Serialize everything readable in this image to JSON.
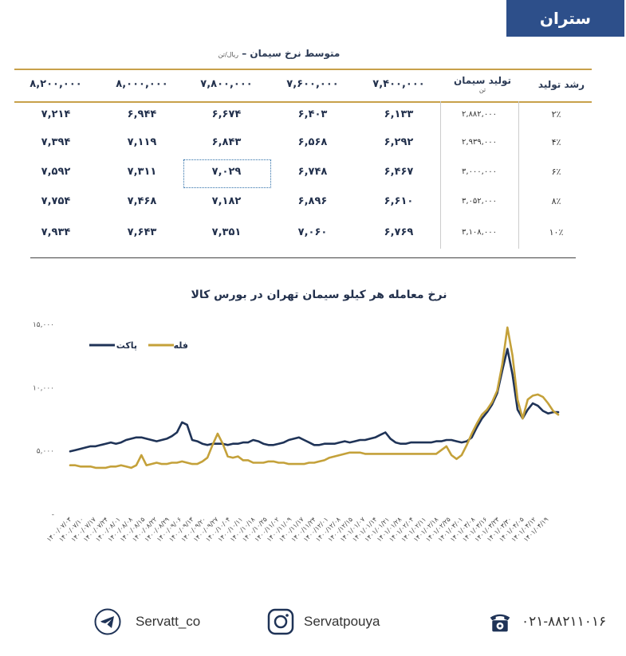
{
  "badge": "ستران",
  "table": {
    "title": "متوسط نرخ سیمان –",
    "title_unit": "ریال/تن",
    "header_growth": "رشد تولید",
    "header_production": "تولید سیمان",
    "header_production_unit": "تن",
    "price_columns": [
      "۸,۲۰۰,۰۰۰",
      "۸,۰۰۰,۰۰۰",
      "۷,۸۰۰,۰۰۰",
      "۷,۶۰۰,۰۰۰",
      "۷,۴۰۰,۰۰۰"
    ],
    "rows": [
      {
        "growth": "۲٪",
        "production": "۲,۸۸۲,۰۰۰",
        "values": [
          "۷,۲۱۴",
          "۶,۹۴۴",
          "۶,۶۷۴",
          "۶,۴۰۳",
          "۶,۱۳۳"
        ]
      },
      {
        "growth": "۴٪",
        "production": "۲,۹۳۹,۰۰۰",
        "values": [
          "۷,۳۹۴",
          "۷,۱۱۹",
          "۶,۸۴۳",
          "۶,۵۶۸",
          "۶,۲۹۲"
        ]
      },
      {
        "growth": "۶٪",
        "production": "۳,۰۰۰,۰۰۰",
        "values": [
          "۷,۵۹۲",
          "۷,۳۱۱",
          "۷,۰۲۹",
          "۶,۷۴۸",
          "۶,۴۶۷"
        ]
      },
      {
        "growth": "۸٪",
        "production": "۳,۰۵۲,۰۰۰",
        "values": [
          "۷,۷۵۴",
          "۷,۴۶۸",
          "۷,۱۸۲",
          "۶,۸۹۶",
          "۶,۶۱۰"
        ]
      },
      {
        "growth": "۱۰٪",
        "production": "۳,۱۰۸,۰۰۰",
        "values": [
          "۷,۹۳۴",
          "۷,۶۴۳",
          "۷,۳۵۱",
          "۷,۰۶۰",
          "۶,۷۶۹"
        ]
      }
    ],
    "highlight": {
      "row": 2,
      "col": 2
    }
  },
  "chart_data": {
    "type": "line",
    "title": "نرخ معامله هر کیلو سیمان تهران در بورس کالا",
    "ylim": [
      0,
      15000
    ],
    "y_ticks": [
      0,
      5000,
      10000,
      15000
    ],
    "y_tick_labels": [
      "-",
      "۵,۰۰۰",
      "۱۰,۰۰۰",
      "۱۵,۰۰۰"
    ],
    "legend_position": "top-left",
    "x_labels": [
      "۱۴۰۰/۰۷/۰۳",
      "۱۴۰۰/۰۷/۱۰",
      "۱۴۰۰/۰۷/۱۷",
      "۱۴۰۰/۰۷/۲۴",
      "۱۴۰۰/۰۸/۰۱",
      "۱۴۰۰/۰۸/۰۸",
      "۱۴۰۰/۰۸/۱۵",
      "۱۴۰۰/۰۸/۲۲",
      "۱۴۰۰/۰۸/۲۹",
      "۱۴۰۰/۰۹/۰۶",
      "۱۴۰۰/۰۹/۱۳",
      "۱۴۰۰/۰۹/۲۰",
      "۱۴۰۰/۰۹/۲۷",
      "۱۴۰۰/۱۰/۰۴",
      "۱۴۰۰/۱۰/۱۱",
      "۱۴۰۰/۱۰/۱۸",
      "۱۴۰۰/۱۰/۲۵",
      "۱۴۰۰/۱۱/۰۲",
      "۱۴۰۰/۱۱/۰۹",
      "۱۴۰۰/۱۱/۱۷",
      "۱۴۰۰/۱۱/۲۴",
      "۱۴۰۰/۱۲/۰۱",
      "۱۴۰۰/۱۲/۰۸",
      "۱۴۰۰/۱۲/۱۵",
      "۱۴۰۱/۰۱/۰۷",
      "۱۴۰۱/۰۱/۱۴",
      "۱۴۰۱/۰۱/۲۱",
      "۱۴۰۱/۰۱/۲۸",
      "۱۴۰۱/۰۲/۰۴",
      "۱۴۰۱/۰۲/۱۱",
      "۱۴۰۱/۰۲/۱۸",
      "۱۴۰۱/۰۲/۲۵",
      "۱۴۰۱/۰۳/۰۱",
      "۱۴۰۱/۰۳/۰۸",
      "۱۴۰۱/۰۳/۱۶",
      "۱۴۰۱/۰۳/۲۳",
      "۱۴۰۱/۰۳/۳۰",
      "۱۴۰۱/۰۴/۰۵",
      "۱۴۰۱/۰۴/۱۲",
      "۱۴۰۱/۰۴/۱۹"
    ],
    "series": [
      {
        "name": "پاکت",
        "color": "#1f3357",
        "values": [
          4900,
          5000,
          5100,
          5200,
          5300,
          5300,
          5400,
          5500,
          5600,
          5500,
          5600,
          5800,
          5900,
          6000,
          6000,
          5900,
          5800,
          5700,
          5800,
          5900,
          6100,
          6400,
          7200,
          7000,
          5800,
          5700,
          5500,
          5400,
          5500,
          5500,
          5500,
          5400,
          5500,
          5500,
          5600,
          5600,
          5800,
          5700,
          5500,
          5400,
          5400,
          5500,
          5600,
          5800,
          5900,
          6000,
          5800,
          5600,
          5400,
          5400,
          5500,
          5500,
          5500,
          5600,
          5700,
          5600,
          5700,
          5800,
          5800,
          5900,
          6000,
          6200,
          6400,
          5900,
          5600,
          5500,
          5500,
          5600,
          5600,
          5600,
          5600,
          5600,
          5700,
          5700,
          5800,
          5800,
          5700,
          5600,
          5700,
          6000,
          6800,
          7500,
          8000,
          8600,
          9500,
          11300,
          13000,
          11000,
          8200,
          7500,
          8200,
          8700,
          8500,
          8100,
          7900,
          8000,
          8000
        ]
      },
      {
        "name": "فله",
        "color": "#c4a13a",
        "values": [
          3800,
          3800,
          3700,
          3700,
          3700,
          3600,
          3600,
          3600,
          3700,
          3700,
          3800,
          3700,
          3600,
          3800,
          4600,
          3800,
          3900,
          4000,
          3900,
          3900,
          4000,
          4000,
          4100,
          4000,
          3900,
          3900,
          4100,
          4400,
          5400,
          6300,
          5500,
          4500,
          4400,
          4500,
          4200,
          4200,
          4000,
          4000,
          4000,
          4100,
          4100,
          4000,
          4000,
          3900,
          3900,
          3900,
          3900,
          4000,
          4000,
          4100,
          4200,
          4400,
          4500,
          4600,
          4700,
          4800,
          4800,
          4800,
          4700,
          4700,
          4700,
          4700,
          4700,
          4700,
          4700,
          4700,
          4700,
          4700,
          4700,
          4700,
          4700,
          4700,
          4700,
          5000,
          5300,
          4600,
          4300,
          4600,
          5400,
          6300,
          7100,
          7800,
          8200,
          8800,
          9700,
          11800,
          14700,
          12500,
          9000,
          7500,
          9000,
          9300,
          9400,
          9200,
          8700,
          8100,
          7800
        ]
      }
    ]
  },
  "footer": {
    "telegram": "Servatt_co",
    "instagram": "Servatpouya",
    "phone": "۰۲۱-۸۸۲۱۱۰۱۶"
  }
}
